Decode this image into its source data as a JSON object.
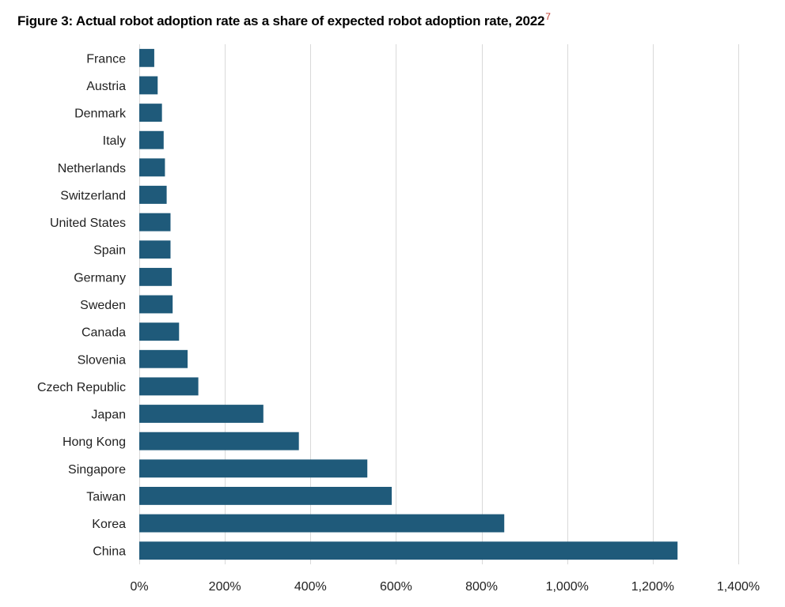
{
  "figure": {
    "title": "Figure 3: Actual robot adoption rate as a share of expected robot adoption rate, 2022",
    "footnote": "7"
  },
  "chart_data": {
    "type": "bar",
    "orientation": "horizontal",
    "title": "Figure 3: Actual robot adoption rate as a share of expected robot adoption rate, 2022",
    "xlabel": "",
    "ylabel": "",
    "xlim": [
      0,
      1400
    ],
    "x_ticks": [
      0,
      200,
      400,
      600,
      800,
      1000,
      1200,
      1400
    ],
    "x_tick_labels": [
      "0%",
      "200%",
      "400%",
      "600%",
      "800%",
      "1,000%",
      "1,200%",
      "1,400%"
    ],
    "grid": "vertical",
    "legend": "none",
    "bar_color": "#1f5a7a",
    "grid_color": "#d9d9d9",
    "categories": [
      "France",
      "Austria",
      "Denmark",
      "Italy",
      "Netherlands",
      "Switzerland",
      "United States",
      "Spain",
      "Germany",
      "Sweden",
      "Canada",
      "Slovenia",
      "Czech Republic",
      "Japan",
      "Hong Kong",
      "Singapore",
      "Taiwan",
      "Korea",
      "China"
    ],
    "values": [
      35,
      43,
      53,
      57,
      60,
      64,
      73,
      73,
      76,
      78,
      93,
      113,
      138,
      290,
      373,
      533,
      590,
      853,
      1258
    ]
  }
}
